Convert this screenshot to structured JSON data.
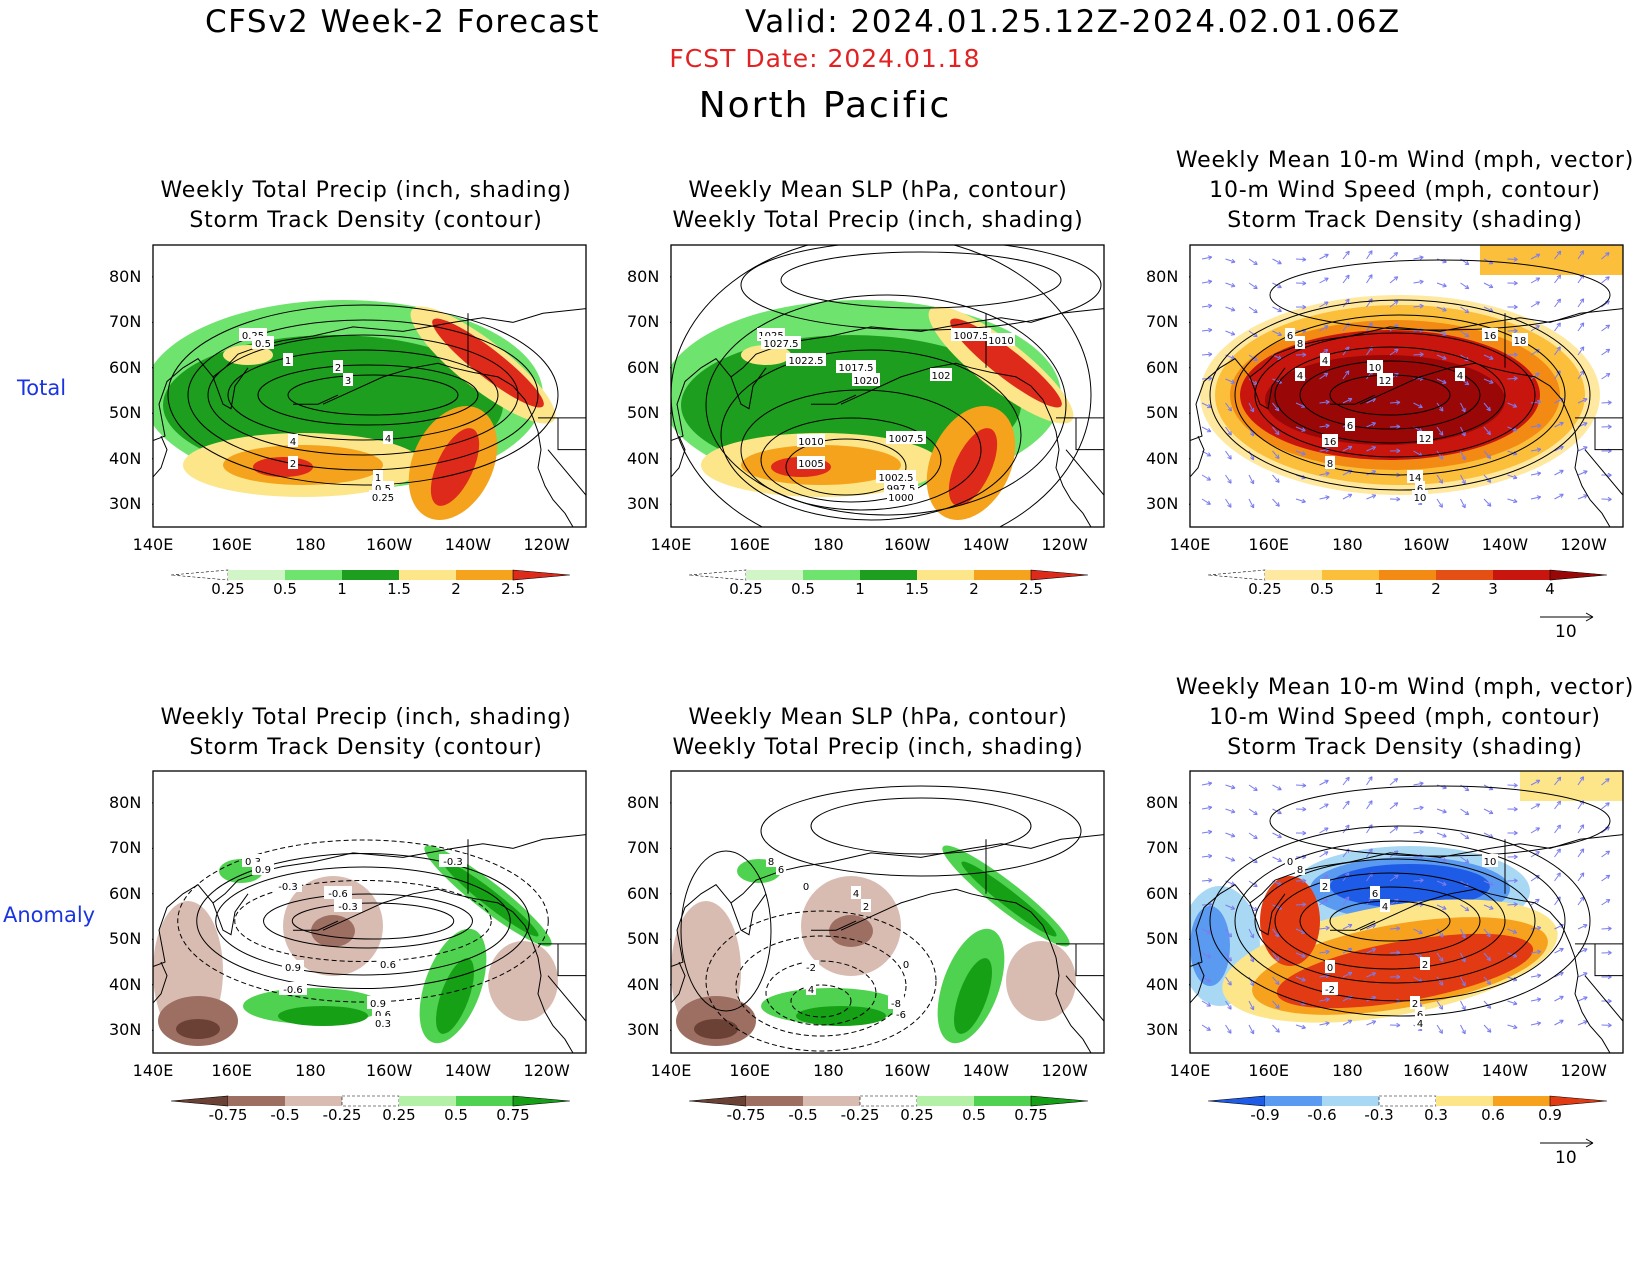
{
  "header": {
    "title_left": "CFSv2 Week-2 Forecast",
    "title_right": "Valid: 2024.01.25.12Z-2024.02.01.06Z",
    "fcst_date": "FCST Date: 2024.01.18",
    "region": "North Pacific"
  },
  "rows": {
    "total": "Total",
    "anomaly": "Anomaly"
  },
  "axes": {
    "lat_ticks": [
      "80N",
      "70N",
      "60N",
      "50N",
      "40N",
      "30N"
    ],
    "lon_ticks": [
      "140E",
      "160E",
      "180",
      "160W",
      "140W",
      "120W"
    ]
  },
  "colors": {
    "precip": [
      "#d2f5c8",
      "#6ee46e",
      "#1e9e1e",
      "#fde68a",
      "#f5a31c",
      "#dd2a1a",
      "#a80d0d"
    ],
    "precip_anom_dry": [
      "#6b4135",
      "#9c6f62",
      "#d9bcb1"
    ],
    "precip_anom_wet": [
      "#b4f0a8",
      "#4fd24f",
      "#16a016"
    ],
    "storm": [
      "#ffe9a0",
      "#fbbf3c",
      "#f28a14",
      "#e44f14",
      "#c8160e",
      "#9a0707"
    ],
    "storm_anom_neg": [
      "#1e5be6",
      "#5a9af0",
      "#a9d8f5"
    ],
    "storm_anom_pos": [
      "#fde68a",
      "#f7a21e",
      "#e23a12"
    ],
    "wind_vectors": "#7a7cf0"
  },
  "panels": {
    "total_precip_track": {
      "title1": "Weekly Total Precip (inch, shading)",
      "title2": "Storm Track Density (contour)",
      "contour_labels": [
        "0.25",
        "0.5",
        "1",
        "2",
        "3",
        "4",
        "4",
        "2",
        "1",
        "0.5",
        "0.25"
      ],
      "colorbar": [
        "0.25",
        "0.5",
        "1",
        "1.5",
        "2",
        "2.5"
      ]
    },
    "total_slp_precip": {
      "title1": "Weekly Mean SLP (hPa, contour)",
      "title2": "Weekly Total Precip (inch, shading)",
      "contour_labels": [
        "1025",
        "1027.5",
        "1022.5",
        "1017.5",
        "1020",
        "1010",
        "1007.5",
        "1005",
        "1002.5",
        "997.5",
        "1000",
        "1007.5",
        "1010",
        "102"
      ],
      "colorbar": [
        "0.25",
        "0.5",
        "1",
        "1.5",
        "2",
        "2.5"
      ]
    },
    "total_wind_track": {
      "title1": "Weekly Mean 10-m Wind (mph, vector)",
      "title2": "10-m Wind Speed (mph, contour)",
      "title3": "Storm Track Density (shading)",
      "contour_labels": [
        "6",
        "8",
        "4",
        "10",
        "12",
        "16",
        "12",
        "8",
        "14",
        "6",
        "10",
        "16",
        "18",
        "4",
        "6",
        "4"
      ],
      "colorbar": [
        "0.25",
        "0.5",
        "1",
        "2",
        "3",
        "4"
      ],
      "vector_ref": "10"
    },
    "anom_precip_track": {
      "title1": "Weekly Total Precip (inch, shading)",
      "title2": "Storm Track Density (contour)",
      "contour_labels": [
        "0.3",
        "0.9",
        "-0.3",
        "-0.6",
        "-0.3",
        "0.9",
        "0.6",
        "-0.6",
        "0.9",
        "0.6",
        "0.3",
        "-0.3"
      ],
      "colorbar": [
        "-0.75",
        "-0.5",
        "-0.25",
        "0.25",
        "0.5",
        "0.75"
      ]
    },
    "anom_slp_precip": {
      "title1": "Weekly Mean SLP (hPa, contour)",
      "title2": "Weekly Total Precip (inch, shading)",
      "contour_labels": [
        "8",
        "6",
        "0",
        "4",
        "2",
        "-2",
        "0",
        "4",
        "-8",
        "-6"
      ],
      "colorbar": [
        "-0.75",
        "-0.5",
        "-0.25",
        "0.25",
        "0.5",
        "0.75"
      ]
    },
    "anom_wind_track": {
      "title1": "Weekly Mean 10-m Wind (mph, vector)",
      "title2": "10-m Wind Speed (mph, contour)",
      "title3": "Storm Track Density (shading)",
      "contour_labels": [
        "0",
        "8",
        "2",
        "6",
        "4",
        "0",
        "2",
        "-2",
        "2",
        "6",
        "4",
        "10"
      ],
      "colorbar": [
        "-0.9",
        "-0.6",
        "-0.3",
        "0.3",
        "0.6",
        "0.9"
      ],
      "vector_ref": "10"
    }
  }
}
